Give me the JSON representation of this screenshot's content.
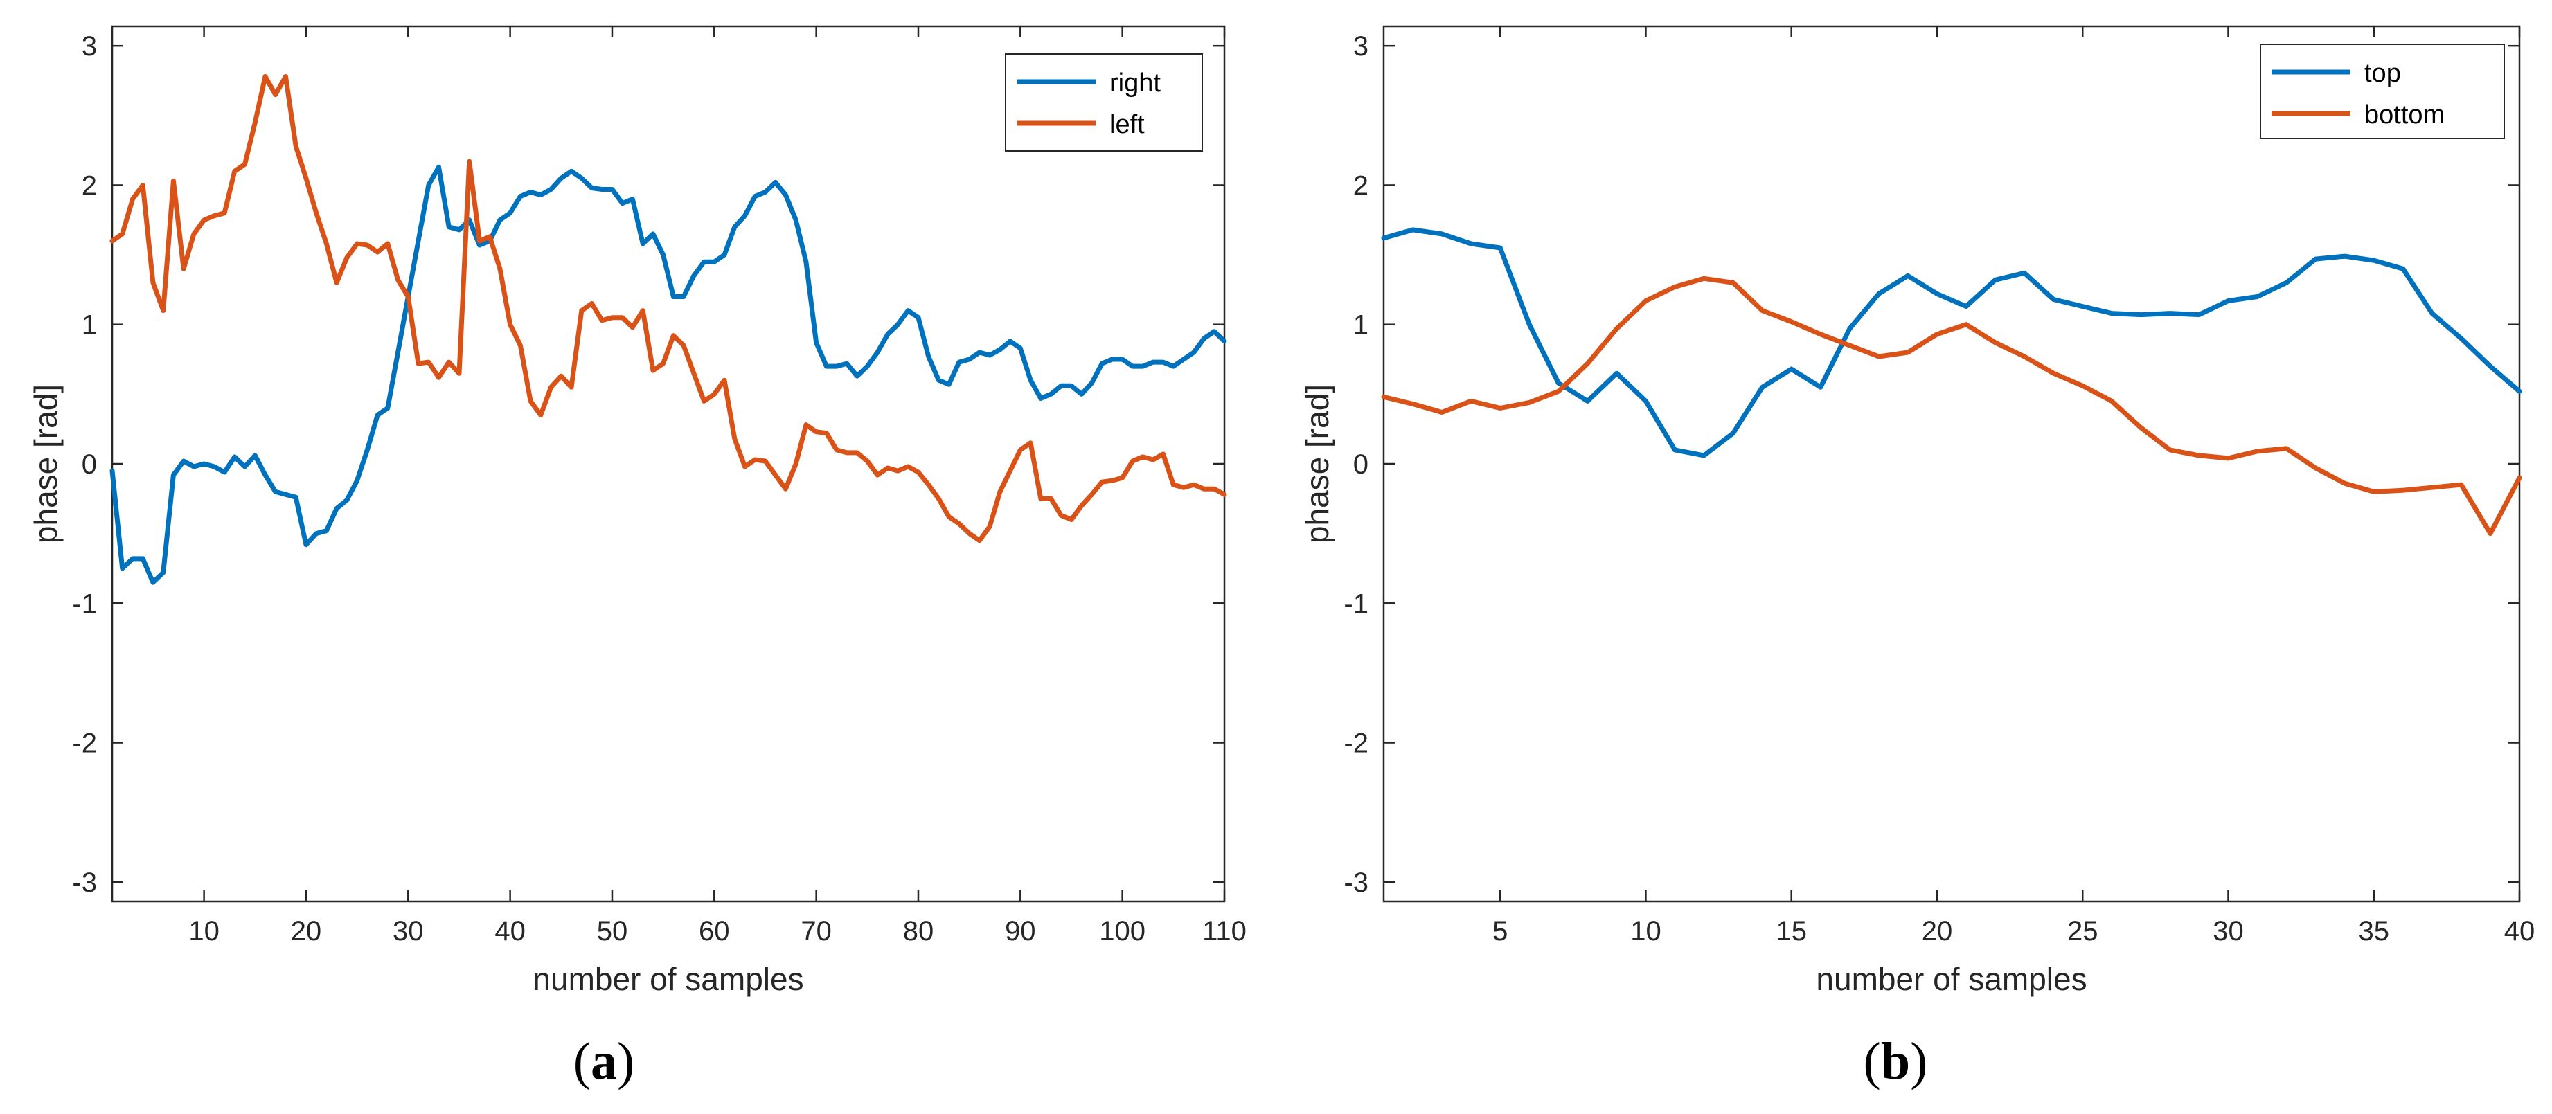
{
  "figure": {
    "captions": [
      {
        "letter": "a"
      },
      {
        "letter": "b"
      }
    ]
  },
  "chart_data": [
    {
      "type": "line",
      "panel": "a",
      "title": "",
      "xlabel": "number of samples",
      "ylabel": "phase [rad]",
      "xlim": [
        1,
        110
      ],
      "ylim": [
        -3.14,
        3.14
      ],
      "xticks": [
        10,
        20,
        30,
        40,
        50,
        60,
        70,
        80,
        90,
        100,
        110
      ],
      "yticks": [
        -3,
        -2,
        -1,
        0,
        1,
        2,
        3
      ],
      "grid": false,
      "legend_position": "top-right",
      "series": [
        {
          "name": "right",
          "color": "#0072BD",
          "x": [
            1,
            2,
            3,
            4,
            5,
            6,
            7,
            8,
            9,
            10,
            11,
            12,
            13,
            14,
            15,
            16,
            17,
            18,
            19,
            20,
            21,
            22,
            23,
            24,
            25,
            26,
            27,
            28,
            29,
            30,
            31,
            32,
            33,
            34,
            35,
            36,
            37,
            38,
            39,
            40,
            41,
            42,
            43,
            44,
            45,
            46,
            47,
            48,
            49,
            50,
            51,
            52,
            53,
            54,
            55,
            56,
            57,
            58,
            59,
            60,
            61,
            62,
            63,
            64,
            65,
            66,
            67,
            68,
            69,
            70,
            71,
            72,
            73,
            74,
            75,
            76,
            77,
            78,
            79,
            80,
            81,
            82,
            83,
            84,
            85,
            86,
            87,
            88,
            89,
            90,
            91,
            92,
            93,
            94,
            95,
            96,
            97,
            98,
            99,
            100,
            101,
            102,
            103,
            104,
            105,
            106,
            107,
            108,
            109,
            110
          ],
          "y": [
            -0.05,
            -0.75,
            -0.68,
            -0.68,
            -0.85,
            -0.78,
            -0.08,
            0.02,
            -0.02,
            0.0,
            -0.02,
            -0.06,
            0.05,
            -0.02,
            0.06,
            -0.08,
            -0.2,
            -0.22,
            -0.24,
            -0.58,
            -0.5,
            -0.48,
            -0.32,
            -0.26,
            -0.12,
            0.1,
            0.35,
            0.4,
            0.8,
            1.2,
            1.6,
            2.0,
            2.13,
            1.7,
            1.68,
            1.75,
            1.57,
            1.6,
            1.75,
            1.8,
            1.92,
            1.95,
            1.93,
            1.97,
            2.05,
            2.1,
            2.05,
            1.98,
            1.97,
            1.97,
            1.87,
            1.9,
            1.58,
            1.65,
            1.5,
            1.2,
            1.2,
            1.35,
            1.45,
            1.45,
            1.5,
            1.7,
            1.78,
            1.92,
            1.95,
            2.02,
            1.93,
            1.75,
            1.45,
            0.87,
            0.7,
            0.7,
            0.72,
            0.63,
            0.7,
            0.8,
            0.93,
            1.0,
            1.1,
            1.05,
            0.77,
            0.6,
            0.57,
            0.73,
            0.75,
            0.8,
            0.78,
            0.82,
            0.88,
            0.83,
            0.6,
            0.47,
            0.5,
            0.56,
            0.56,
            0.5,
            0.58,
            0.72,
            0.75,
            0.75,
            0.7,
            0.7,
            0.73,
            0.73,
            0.7,
            0.75,
            0.8,
            0.9,
            0.95,
            0.88
          ]
        },
        {
          "name": "left",
          "color": "#D95319",
          "x": [
            1,
            2,
            3,
            4,
            5,
            6,
            7,
            8,
            9,
            10,
            11,
            12,
            13,
            14,
            15,
            16,
            17,
            18,
            19,
            20,
            21,
            22,
            23,
            24,
            25,
            26,
            27,
            28,
            29,
            30,
            31,
            32,
            33,
            34,
            35,
            36,
            37,
            38,
            39,
            40,
            41,
            42,
            43,
            44,
            45,
            46,
            47,
            48,
            49,
            50,
            51,
            52,
            53,
            54,
            55,
            56,
            57,
            58,
            59,
            60,
            61,
            62,
            63,
            64,
            65,
            66,
            67,
            68,
            69,
            70,
            71,
            72,
            73,
            74,
            75,
            76,
            77,
            78,
            79,
            80,
            81,
            82,
            83,
            84,
            85,
            86,
            87,
            88,
            89,
            90,
            91,
            92,
            93,
            94,
            95,
            96,
            97,
            98,
            99,
            100,
            101,
            102,
            103,
            104,
            105,
            106,
            107,
            108,
            109,
            110
          ],
          "y": [
            1.6,
            1.65,
            1.9,
            2.0,
            1.3,
            1.1,
            2.03,
            1.4,
            1.65,
            1.75,
            1.78,
            1.8,
            2.1,
            2.15,
            2.45,
            2.78,
            2.65,
            2.78,
            2.28,
            2.05,
            1.8,
            1.58,
            1.3,
            1.48,
            1.58,
            1.57,
            1.52,
            1.58,
            1.32,
            1.2,
            0.72,
            0.73,
            0.62,
            0.73,
            0.65,
            2.17,
            1.6,
            1.63,
            1.4,
            1.0,
            0.85,
            0.45,
            0.35,
            0.55,
            0.63,
            0.55,
            1.1,
            1.15,
            1.03,
            1.05,
            1.05,
            0.98,
            1.1,
            0.67,
            0.72,
            0.92,
            0.85,
            0.65,
            0.45,
            0.5,
            0.6,
            0.18,
            -0.02,
            0.03,
            0.02,
            -0.08,
            -0.18,
            0.0,
            0.28,
            0.23,
            0.22,
            0.1,
            0.08,
            0.08,
            0.02,
            -0.08,
            -0.03,
            -0.05,
            -0.02,
            -0.06,
            -0.15,
            -0.25,
            -0.38,
            -0.43,
            -0.5,
            -0.55,
            -0.45,
            -0.2,
            -0.05,
            0.1,
            0.15,
            -0.25,
            -0.25,
            -0.37,
            -0.4,
            -0.3,
            -0.22,
            -0.13,
            -0.12,
            -0.1,
            0.02,
            0.05,
            0.03,
            0.07,
            -0.15,
            -0.17,
            -0.15,
            -0.18,
            -0.18,
            -0.22
          ]
        }
      ]
    },
    {
      "type": "line",
      "panel": "b",
      "title": "",
      "xlabel": "number of samples",
      "ylabel": "phase [rad]",
      "xlim": [
        1,
        40
      ],
      "ylim": [
        -3.14,
        3.14
      ],
      "xticks": [
        5,
        10,
        15,
        20,
        25,
        30,
        35,
        40
      ],
      "yticks": [
        -3,
        -2,
        -1,
        0,
        1,
        2,
        3
      ],
      "grid": false,
      "legend_position": "top-right",
      "series": [
        {
          "name": "top",
          "color": "#0072BD",
          "x": [
            1,
            2,
            3,
            4,
            5,
            6,
            7,
            8,
            9,
            10,
            11,
            12,
            13,
            14,
            15,
            16,
            17,
            18,
            19,
            20,
            21,
            22,
            23,
            24,
            25,
            26,
            27,
            28,
            29,
            30,
            31,
            32,
            33,
            34,
            35,
            36,
            37,
            38,
            39,
            40
          ],
          "y": [
            1.62,
            1.68,
            1.65,
            1.58,
            1.55,
            1.0,
            0.58,
            0.45,
            0.65,
            0.45,
            0.1,
            0.06,
            0.22,
            0.55,
            0.68,
            0.55,
            0.97,
            1.22,
            1.35,
            1.22,
            1.13,
            1.32,
            1.37,
            1.18,
            1.13,
            1.08,
            1.07,
            1.08,
            1.07,
            1.17,
            1.2,
            1.3,
            1.47,
            1.49,
            1.46,
            1.4,
            1.08,
            0.9,
            0.7,
            0.52
          ]
        },
        {
          "name": "bottom",
          "color": "#D95319",
          "x": [
            1,
            2,
            3,
            4,
            5,
            6,
            7,
            8,
            9,
            10,
            11,
            12,
            13,
            14,
            15,
            16,
            17,
            18,
            19,
            20,
            21,
            22,
            23,
            24,
            25,
            26,
            27,
            28,
            29,
            30,
            31,
            32,
            33,
            34,
            35,
            36,
            37,
            38,
            39,
            40
          ],
          "y": [
            0.48,
            0.43,
            0.37,
            0.45,
            0.4,
            0.44,
            0.52,
            0.72,
            0.97,
            1.17,
            1.27,
            1.33,
            1.3,
            1.1,
            1.02,
            0.93,
            0.85,
            0.77,
            0.8,
            0.93,
            1.0,
            0.87,
            0.77,
            0.65,
            0.56,
            0.45,
            0.26,
            0.1,
            0.06,
            0.04,
            0.09,
            0.11,
            -0.03,
            -0.14,
            -0.2,
            -0.19,
            -0.17,
            -0.15,
            -0.5,
            -0.1
          ]
        }
      ]
    }
  ]
}
